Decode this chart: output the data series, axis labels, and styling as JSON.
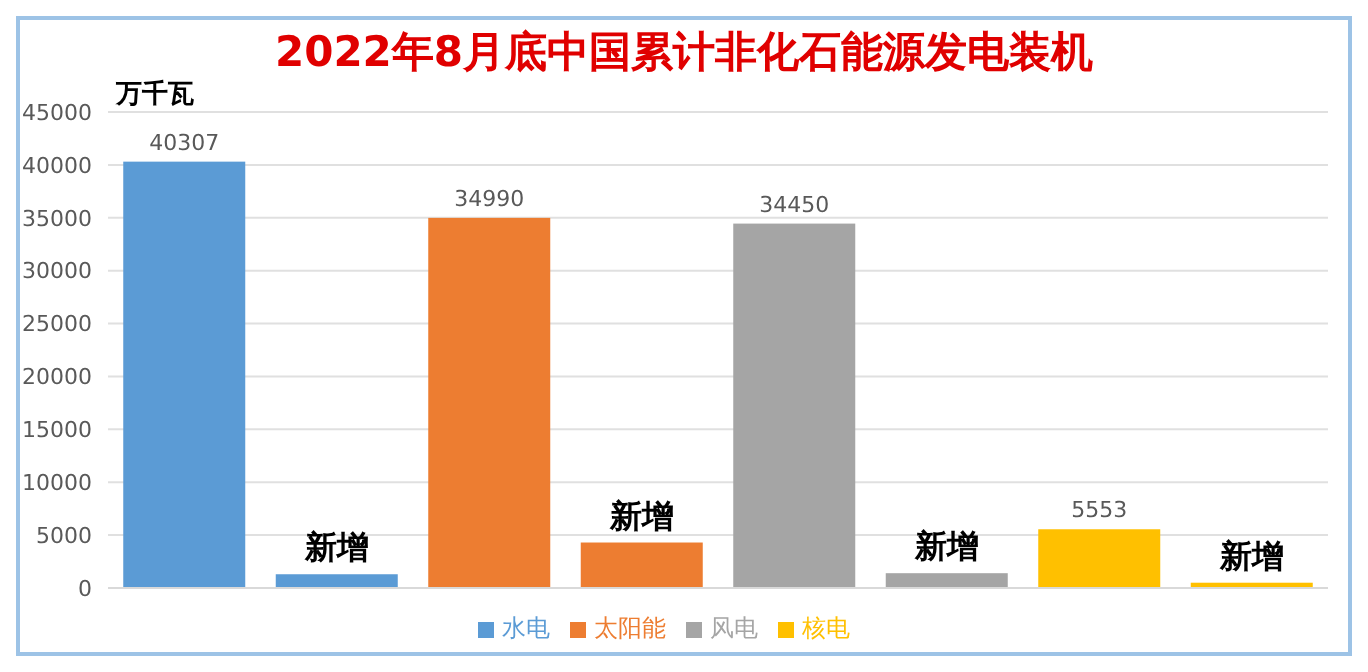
{
  "chart_data": {
    "type": "bar",
    "title": "2022年8月底中国累计非化石能源发电装机",
    "ylabel": "万千瓦",
    "categories": [
      null,
      null,
      null,
      null,
      null,
      null,
      null,
      null
    ],
    "stacked": true,
    "series": [
      {
        "name": "水电",
        "color": "#5b9bd5",
        "values": [
          40307,
          1300,
          null,
          null,
          null,
          null,
          null,
          null
        ],
        "value_labels": [
          "40307",
          "新增",
          null,
          null,
          null,
          null,
          null,
          null
        ]
      },
      {
        "name": "太阳能",
        "color": "#ed7d31",
        "values": [
          null,
          null,
          34990,
          4300,
          null,
          null,
          null,
          null
        ],
        "value_labels": [
          null,
          null,
          "34990",
          "新增",
          null,
          null,
          null,
          null
        ]
      },
      {
        "name": "风电",
        "color": "#a5a5a5",
        "values": [
          null,
          null,
          null,
          null,
          34450,
          1400,
          null,
          null
        ],
        "value_labels": [
          null,
          null,
          null,
          null,
          "34450",
          "新增",
          null,
          null
        ]
      },
      {
        "name": "核电",
        "color": "#ffc000",
        "values": [
          null,
          null,
          null,
          null,
          null,
          null,
          5553,
          500
        ],
        "value_labels": [
          null,
          null,
          null,
          null,
          null,
          null,
          "5553",
          "新增"
        ]
      }
    ],
    "ylim": [
      0,
      45000
    ],
    "yticks": [
      0,
      5000,
      10000,
      15000,
      20000,
      25000,
      30000,
      35000,
      40000,
      45000
    ],
    "grid": "y",
    "legend": "bottom"
  }
}
